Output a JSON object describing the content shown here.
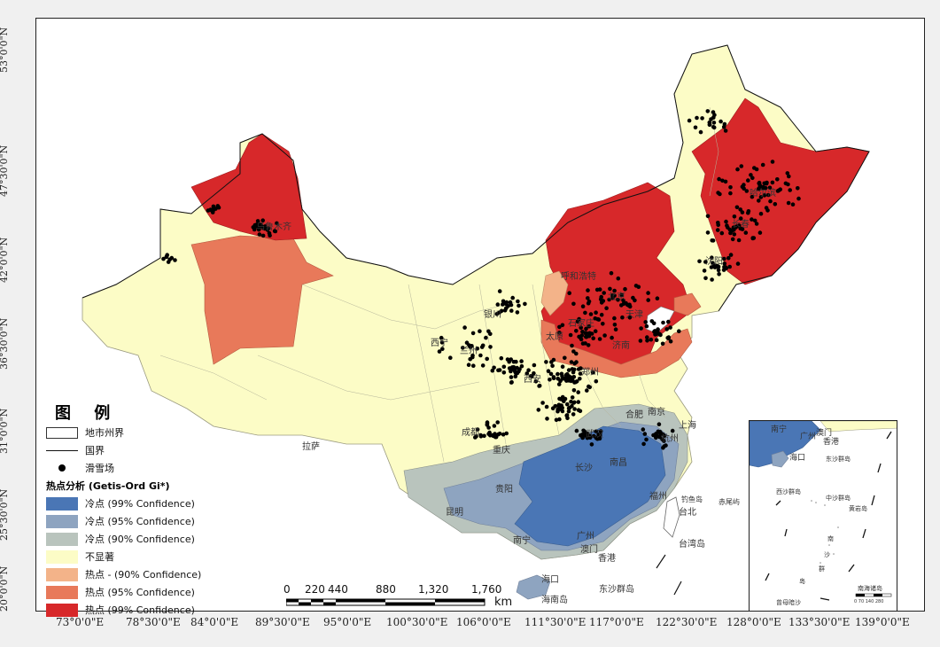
{
  "map": {
    "lat_ticks": [
      "53°0'0\"N",
      "47°30'0\"N",
      "42°0'0\"N",
      "36°30'0\"N",
      "31°0'0\"N",
      "25°30'0\"N",
      "20°0'0\"N"
    ],
    "lon_ticks": [
      "73°0'0\"E",
      "78°30'0\"E",
      "84°0'0\"E",
      "89°30'0\"E",
      "95°0'0\"E",
      "100°30'0\"E",
      "106°0'0\"E",
      "111°30'0\"E",
      "117°0'0\"E",
      "122°30'0\"E",
      "128°0'0\"E",
      "133°30'0\"E",
      "139°0'0\"E"
    ],
    "colors": {
      "cold99": "#4a76b5",
      "cold95": "#8ea4c0",
      "cold90": "#b9c4bd",
      "notsig": "#fcfcc6",
      "hot90": "#f3b389",
      "hot95": "#e8795a",
      "hot99": "#d7282a"
    },
    "cities": {
      "urumqi": "乌鲁木齐",
      "harbin": "哈尔滨",
      "changchun": "长春",
      "shenyang": "沈阳",
      "hohhot": "呼和浩特",
      "beijing": "北京",
      "tianjin": "天津",
      "yinchuan": "银川",
      "xining": "西宁",
      "lanzhou": "兰州",
      "taiyuan": "太原",
      "shijiazhuang": "石家庄",
      "jinan": "济南",
      "zhengzhou": "郑州",
      "xian": "西安",
      "hefei": "合肥",
      "nanjing": "南京",
      "shanghai": "上海",
      "hangzhou": "杭州",
      "wuhan": "武汉",
      "chengdu": "成都",
      "chongqing": "重庆",
      "lhasa": "拉萨",
      "changsha": "长沙",
      "nanchang": "南昌",
      "fuzhou": "福州",
      "guiyang": "贵阳",
      "kunming": "昆明",
      "nanning": "南宁",
      "guangzhou": "广州",
      "macau": "澳门",
      "hongkong": "香港",
      "haikou": "海口",
      "hainan": "海南岛",
      "taiwan": "台湾岛",
      "taipei": "台北",
      "diaoyu": "钓鱼岛",
      "chiwei": "赤尾屿",
      "dongsha": "东沙群岛"
    }
  },
  "legend": {
    "title": "图 例",
    "boundary": "地市州界",
    "border": "国界",
    "ski": "滑雪场",
    "hotspot_title": "热点分析 (Getis-Ord Gi*)",
    "classes": [
      {
        "label": "冷点 (99% Confidence)",
        "color": "#4a76b5"
      },
      {
        "label": "冷点 (95% Confidence)",
        "color": "#8ea4c0"
      },
      {
        "label": "冷点 (90% Confidence)",
        "color": "#b9c4bd"
      },
      {
        "label": "不显著",
        "color": "#fcfcc6"
      },
      {
        "label": "热点 - (90% Confidence)",
        "color": "#f3b389"
      },
      {
        "label": "热点 (95% Confidence)",
        "color": "#e8795a"
      },
      {
        "label": "热点 (99% Confidence)",
        "color": "#d7282a"
      }
    ]
  },
  "scale": {
    "labels": [
      "0",
      "220",
      "440",
      "880",
      "1,320",
      "1,760"
    ],
    "unit": "km"
  },
  "inset": {
    "nanning": "南宁",
    "guangzhou": "广州",
    "macau": "澳门",
    "hongkong": "香港",
    "haikou": "海口",
    "dongsha": "东沙群岛",
    "xisha": "西沙群岛",
    "zhongsha": "中沙群岛",
    "huangyan": "黄岩岛",
    "nansha1": "南",
    "nansha2": "沙",
    "nansha3": "群",
    "nansha4": "岛",
    "zengmu": "曾母暗沙",
    "nanhai": "南海诸岛",
    "scale": "0 70 140 280"
  }
}
